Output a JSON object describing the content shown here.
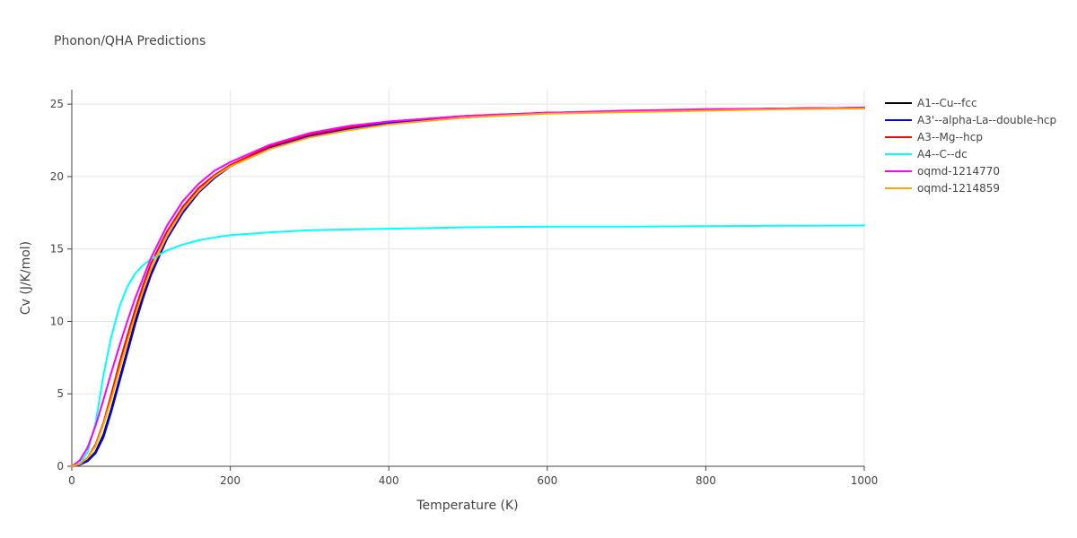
{
  "chart_data": {
    "type": "line",
    "title": "Phonon/QHA Predictions",
    "xlabel": "Temperature (K)",
    "ylabel": "Cv (J/K/mol)",
    "xlim": [
      0,
      1000
    ],
    "ylim": [
      0,
      26
    ],
    "xticks": [
      0,
      200,
      400,
      600,
      800,
      1000
    ],
    "yticks": [
      0,
      5,
      10,
      15,
      20,
      25
    ],
    "grid": true,
    "legend_position": "top-right",
    "x": [
      0,
      10,
      20,
      30,
      40,
      50,
      60,
      70,
      80,
      90,
      100,
      120,
      140,
      160,
      180,
      200,
      250,
      300,
      350,
      400,
      500,
      600,
      700,
      800,
      900,
      1000
    ],
    "series": [
      {
        "name": "A1--Cu--fcc",
        "color": "#000000",
        "values": [
          0,
          0.1,
          0.4,
          1.0,
          2.2,
          4.0,
          6.0,
          8.0,
          10.0,
          11.8,
          13.3,
          15.7,
          17.5,
          18.9,
          19.9,
          20.7,
          22.0,
          22.8,
          23.3,
          23.7,
          24.1,
          24.4,
          24.5,
          24.6,
          24.7,
          24.75
        ]
      },
      {
        "name": "A3'--alpha-La--double-hcp",
        "color": "#0000ff",
        "values": [
          0,
          0.1,
          0.35,
          0.9,
          2.0,
          3.8,
          5.8,
          7.8,
          9.8,
          11.6,
          13.2,
          15.7,
          17.5,
          18.9,
          19.9,
          20.7,
          22.0,
          22.8,
          23.3,
          23.7,
          24.1,
          24.4,
          24.5,
          24.6,
          24.7,
          24.75
        ]
      },
      {
        "name": "A3--Mg--hcp",
        "color": "#ff0000",
        "values": [
          0,
          0.2,
          0.6,
          1.5,
          3.0,
          5.0,
          7.1,
          9.0,
          10.8,
          12.5,
          14.0,
          16.2,
          17.9,
          19.2,
          20.1,
          20.8,
          22.1,
          22.9,
          23.4,
          23.8,
          24.2,
          24.4,
          24.5,
          24.6,
          24.7,
          24.75
        ]
      },
      {
        "name": "A4--C--dc",
        "color": "#00ffff",
        "values": [
          0,
          0.2,
          1.0,
          3.0,
          6.3,
          9.0,
          11.0,
          12.4,
          13.3,
          13.9,
          14.3,
          14.9,
          15.3,
          15.6,
          15.8,
          15.95,
          16.15,
          16.3,
          16.35,
          16.4,
          16.5,
          16.55,
          16.55,
          16.58,
          16.6,
          16.62
        ]
      },
      {
        "name": "oqmd-1214770",
        "color": "#ff00ff",
        "values": [
          0,
          0.4,
          1.3,
          2.8,
          4.6,
          6.5,
          8.3,
          10.0,
          11.6,
          13.0,
          14.4,
          16.6,
          18.3,
          19.5,
          20.4,
          21.0,
          22.2,
          23.0,
          23.5,
          23.8,
          24.2,
          24.4,
          24.55,
          24.65,
          24.7,
          24.75
        ]
      },
      {
        "name": "oqmd-1214859",
        "color": "#ffa500",
        "values": [
          0,
          0.15,
          0.6,
          1.4,
          2.9,
          4.7,
          6.7,
          8.6,
          10.4,
          12.1,
          13.6,
          15.9,
          17.7,
          19.0,
          20.0,
          20.7,
          21.9,
          22.7,
          23.2,
          23.6,
          24.1,
          24.35,
          24.45,
          24.55,
          24.65,
          24.7
        ]
      }
    ]
  }
}
